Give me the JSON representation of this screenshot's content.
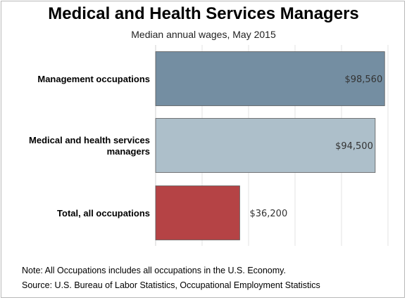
{
  "chart_data": {
    "type": "bar",
    "orientation": "horizontal",
    "title": "Medical and Health Services Managers",
    "subtitle": "Median annual wages, May 2015",
    "categories": [
      "Management occupations",
      "Medical and health services managers",
      "Total, all occupations"
    ],
    "category_lines": [
      [
        "Management occupations"
      ],
      [
        "Medical and health services",
        "managers"
      ],
      [
        "Total, all occupations"
      ]
    ],
    "values": [
      98560,
      94500,
      36200
    ],
    "value_labels": [
      "$98,560",
      "$94,500",
      "$36,200"
    ],
    "colors": [
      "#748ea2",
      "#adbfca",
      "#b54345"
    ],
    "xlim": [
      0,
      100000
    ],
    "grid": "vertical",
    "xlabel": "",
    "ylabel": ""
  },
  "notes": {
    "note": "Note: All Occupations includes all occupations in the U.S. Economy.",
    "source": "Source: U.S. Bureau of Labor Statistics, Occupational Employment Statistics"
  }
}
